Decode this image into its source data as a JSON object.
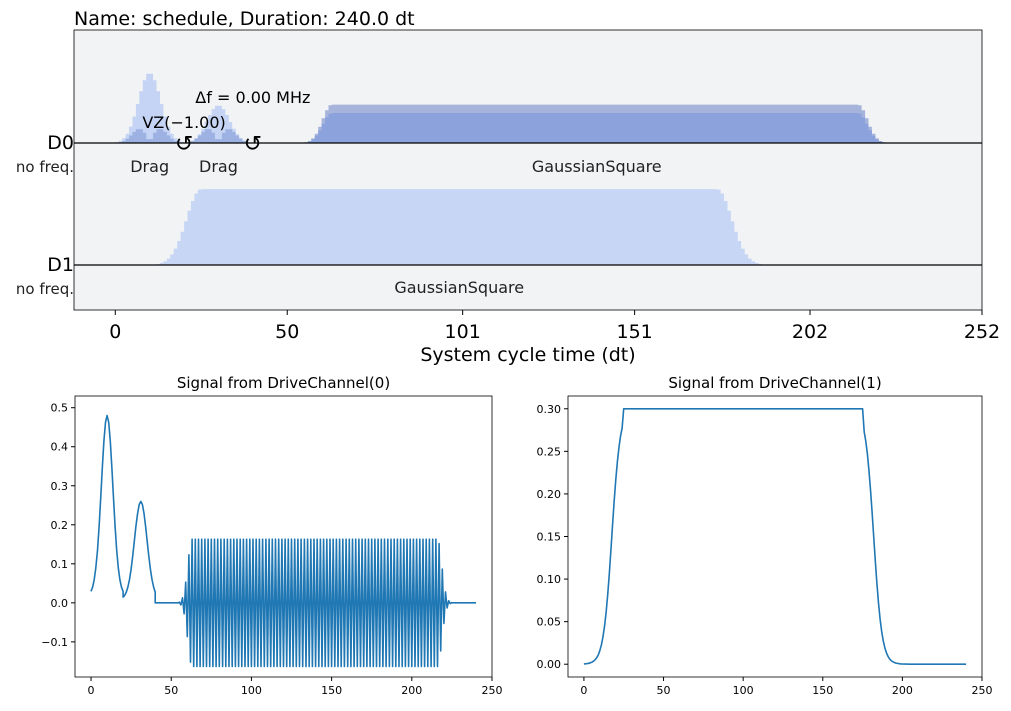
{
  "colors": {
    "panel_bg": "#f2f3f5",
    "drag_d0": "#c5d4f4",
    "gauss_d0_top": "#a6b4dc",
    "gauss_d0_body": "#8ba2dc",
    "gauss_d1": "#c8d6f6",
    "signal_line": "#1f77b4",
    "axis": "#000000"
  },
  "chart_data": [
    {
      "type": "area",
      "title": "Name: schedule, Duration: 240.0 dt",
      "xlabel": "System cycle time (dt)",
      "xlim": [
        -12,
        252
      ],
      "xticks": [
        0,
        50,
        101,
        151,
        202,
        252
      ],
      "channels": [
        {
          "name": "D0",
          "freq_label": "no freq.",
          "pulses": [
            {
              "label": "Drag",
              "start": 0,
              "end": 20,
              "peak": 0.5,
              "kind": "drag"
            },
            {
              "label": "Drag",
              "start": 20,
              "end": 40,
              "peak": 0.27,
              "kind": "drag"
            },
            {
              "label": "GaussianSquare",
              "start": 55,
              "end": 225,
              "flat_start": 63,
              "flat_end": 216,
              "peak": 0.3,
              "kind": "gsq"
            }
          ],
          "annotations": [
            {
              "text": "VZ(−1.00)",
              "at": 20
            },
            {
              "text": "Δf = 0.00 MHz",
              "at": 40
            }
          ]
        },
        {
          "name": "D1",
          "freq_label": "no freq.",
          "pulses": [
            {
              "label": "GaussianSquare",
              "start": 10,
              "end": 190,
              "flat_start": 25,
              "flat_end": 175,
              "peak": 0.3,
              "kind": "gsq"
            }
          ],
          "annotations": []
        }
      ]
    },
    {
      "type": "line",
      "title": "Signal from DriveChannel(0)",
      "xlim": [
        -10,
        250
      ],
      "ylim": [
        -0.19,
        0.53
      ],
      "xticks": [
        0,
        50,
        100,
        150,
        200,
        250
      ],
      "yticks": [
        -0.1,
        0.0,
        0.1,
        0.2,
        0.3,
        0.4,
        0.5
      ],
      "ytick_labels": [
        "−0.1",
        "0.0",
        "0.1",
        "0.2",
        "0.3",
        "0.4",
        "0.5"
      ],
      "series": [
        {
          "segments": [
            {
              "kind": "gauss",
              "start": 0,
              "end": 20,
              "center": 10,
              "sigma": 3.6,
              "amp": 0.48,
              "offset": 0.02
            },
            {
              "kind": "gauss",
              "start": 20,
              "end": 40,
              "center": 31,
              "sigma": 3.9,
              "amp": 0.26,
              "offset": 0.01
            },
            {
              "kind": "zero",
              "start": 40,
              "end": 55
            },
            {
              "kind": "osc",
              "start": 55,
              "end": 225,
              "flat_start": 63,
              "flat_end": 216,
              "amp": 0.163,
              "low": -0.163
            },
            {
              "kind": "zero",
              "start": 225,
              "end": 240
            }
          ]
        }
      ]
    },
    {
      "type": "line",
      "title": "Signal from DriveChannel(1)",
      "xlim": [
        -10,
        250
      ],
      "ylim": [
        -0.015,
        0.315
      ],
      "xticks": [
        0,
        50,
        100,
        150,
        200,
        250
      ],
      "yticks": [
        0.0,
        0.05,
        0.1,
        0.15,
        0.2,
        0.25,
        0.3
      ],
      "ytick_labels": [
        "0.00",
        "0.05",
        "0.10",
        "0.15",
        "0.20",
        "0.25",
        "0.30"
      ],
      "series": [
        {
          "segments": [
            {
              "kind": "gsq",
              "start": 0,
              "end": 240,
              "rise_center": 17.5,
              "fall_center": 182,
              "sigma": 2.6,
              "amp": 0.3
            }
          ]
        }
      ]
    }
  ]
}
